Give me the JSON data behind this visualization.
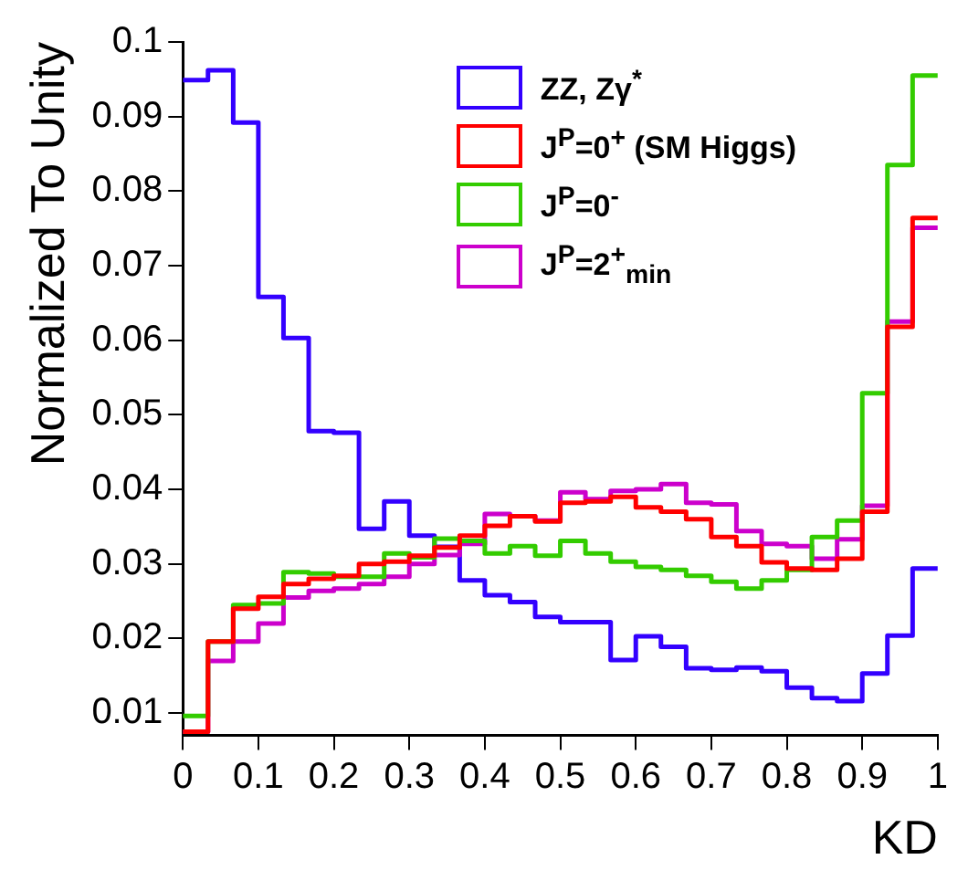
{
  "chart_data": {
    "type": "histogram",
    "xlabel": "KD",
    "ylabel": "Normalized To Unity",
    "bins": [
      0,
      0.0333,
      0.0667,
      0.1,
      0.1333,
      0.1667,
      0.2,
      0.2333,
      0.2667,
      0.3,
      0.3333,
      0.3667,
      0.4,
      0.4333,
      0.4667,
      0.5,
      0.5333,
      0.5667,
      0.6,
      0.6333,
      0.6667,
      0.7,
      0.7333,
      0.7667,
      0.8,
      0.8333,
      0.8667,
      0.9,
      0.9333,
      0.9667,
      1
    ],
    "series": [
      {
        "name": "ZZ, Zγ$^{*}$",
        "color": "#3300ff",
        "values": [
          0.0949,
          0.0962,
          0.0892,
          0.0658,
          0.0603,
          0.0478,
          0.0476,
          0.0347,
          0.0384,
          0.0338,
          0.0323,
          0.0278,
          0.0258,
          0.0249,
          0.0229,
          0.0222,
          0.0222,
          0.0171,
          0.0203,
          0.0189,
          0.016,
          0.0158,
          0.0161,
          0.0156,
          0.0134,
          0.012,
          0.0116,
          0.0153,
          0.0204,
          0.0294
        ]
      },
      {
        "name": "J$^{P}$=0$^{+}$ (SM Higgs)",
        "color": "#ff0000",
        "values": [
          0.0075,
          0.0196,
          0.024,
          0.0256,
          0.0273,
          0.028,
          0.0284,
          0.03,
          0.0303,
          0.0311,
          0.0322,
          0.0338,
          0.0351,
          0.0364,
          0.0357,
          0.0382,
          0.0384,
          0.039,
          0.0376,
          0.037,
          0.036,
          0.0336,
          0.0324,
          0.0302,
          0.0294,
          0.0292,
          0.0307,
          0.037,
          0.0618,
          0.0764
        ]
      },
      {
        "name": "J$^{P}$=0$^{-}$",
        "color": "#33cc00",
        "values": [
          0.0096,
          0.0196,
          0.0245,
          0.0247,
          0.0289,
          0.0287,
          0.0283,
          0.0283,
          0.0314,
          0.0309,
          0.0334,
          0.0331,
          0.0314,
          0.0324,
          0.0311,
          0.0331,
          0.0314,
          0.0303,
          0.0296,
          0.0292,
          0.0284,
          0.0276,
          0.0267,
          0.0278,
          0.0292,
          0.0336,
          0.0358,
          0.0529,
          0.0835,
          0.0955
        ]
      },
      {
        "name": "J$^{P}$=2$^{+}$$_{min}$",
        "color": "#cc00cc",
        "values": [
          0.0075,
          0.017,
          0.0196,
          0.022,
          0.0255,
          0.0264,
          0.0267,
          0.0273,
          0.0283,
          0.03,
          0.0312,
          0.0327,
          0.0367,
          0.0364,
          0.0358,
          0.0396,
          0.0387,
          0.0398,
          0.04,
          0.0407,
          0.0382,
          0.038,
          0.0344,
          0.0327,
          0.0324,
          0.0307,
          0.0333,
          0.0378,
          0.0625,
          0.0751
        ]
      }
    ],
    "xlim": [
      0,
      1
    ],
    "xticks": [
      0,
      0.1,
      0.2,
      0.3,
      0.4,
      0.5,
      0.6,
      0.7,
      0.8,
      0.9,
      1
    ],
    "ylim": [
      0.007,
      0.1
    ],
    "yticks": [
      0.01,
      0.02,
      0.03,
      0.04,
      0.05,
      0.06,
      0.07,
      0.08,
      0.09,
      0.1
    ],
    "legend": "top right"
  }
}
